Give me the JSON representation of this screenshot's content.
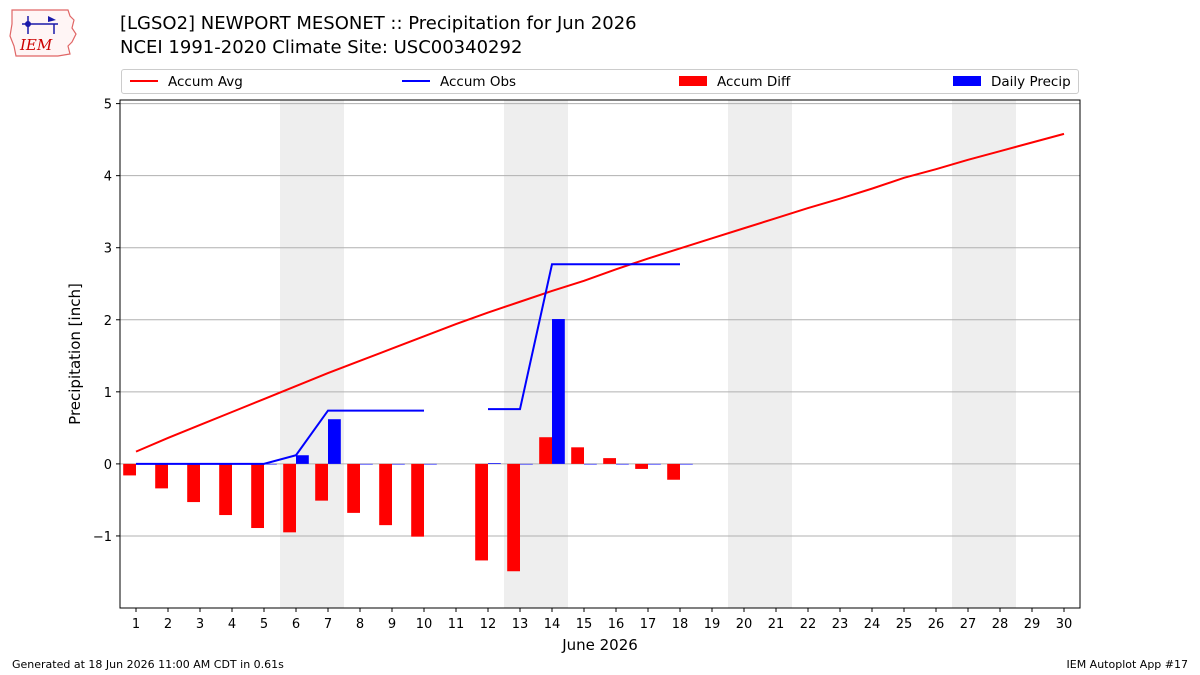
{
  "header": {
    "title_line1": "[LGSO2] NEWPORT MESONET :: Precipitation for Jun 2026",
    "title_line2": "NCEI 1991-2020 Climate Site: USC00340292",
    "logo_text": "IEM"
  },
  "footer": {
    "left": "Generated at 18 Jun 2026 11:00 AM CDT in 0.61s",
    "right": "IEM Autoplot App #17"
  },
  "colors": {
    "avg": "#ff0000",
    "obs": "#0000ff",
    "diff": "#ff0000",
    "daily": "#0000ff",
    "weekend": "#eeeeee",
    "grid": "#b0b0b0"
  },
  "chart_data": {
    "type": "bar",
    "xlabel": "June 2026",
    "ylabel": "Precipitation [inch]",
    "xlim": [
      0.5,
      30.5
    ],
    "ylim": [
      -2.0,
      5.05
    ],
    "yticks": [
      -1,
      0,
      1,
      2,
      3,
      4,
      5
    ],
    "ytick_labels": [
      "−1",
      "0",
      "1",
      "2",
      "3",
      "4",
      "5"
    ],
    "x": [
      1,
      2,
      3,
      4,
      5,
      6,
      7,
      8,
      9,
      10,
      11,
      12,
      13,
      14,
      15,
      16,
      17,
      18,
      19,
      20,
      21,
      22,
      23,
      24,
      25,
      26,
      27,
      28,
      29,
      30
    ],
    "weekend_days": [
      6,
      7,
      13,
      14,
      20,
      21,
      27,
      28
    ],
    "grid": "y",
    "legend_position": "top",
    "series": [
      {
        "name": "Accum Avg",
        "kind": "line",
        "values": [
          0.17,
          0.36,
          0.54,
          0.72,
          0.9,
          1.08,
          1.26,
          1.43,
          1.6,
          1.77,
          1.94,
          2.1,
          2.25,
          2.4,
          2.54,
          2.7,
          2.85,
          2.99,
          3.13,
          3.27,
          3.41,
          3.55,
          3.68,
          3.82,
          3.97,
          4.09,
          4.22,
          4.34,
          4.46,
          4.58
        ]
      },
      {
        "name": "Accum Obs",
        "kind": "line",
        "values": [
          0.0,
          0.0,
          0.0,
          0.0,
          0.0,
          0.12,
          0.74,
          0.74,
          0.74,
          0.74,
          null,
          0.76,
          0.76,
          2.77,
          2.77,
          2.77,
          2.77,
          2.77,
          null,
          null,
          null,
          null,
          null,
          null,
          null,
          null,
          null,
          null,
          null,
          null
        ]
      },
      {
        "name": "Accum Diff",
        "kind": "bar",
        "values": [
          -0.16,
          -0.34,
          -0.53,
          -0.71,
          -0.89,
          -0.95,
          -0.51,
          -0.68,
          -0.85,
          -1.01,
          null,
          -1.34,
          -1.49,
          0.37,
          0.23,
          0.08,
          -0.07,
          -0.22,
          null,
          null,
          null,
          null,
          null,
          null,
          null,
          null,
          null,
          null,
          null,
          null
        ]
      },
      {
        "name": "Daily Precip",
        "kind": "bar",
        "values": [
          0.0,
          0.0,
          0.0,
          0.0,
          0.0,
          0.12,
          0.62,
          0.0,
          0.0,
          0.0,
          null,
          0.01,
          0.0,
          2.01,
          0.0,
          0.0,
          0.0,
          0.0,
          null,
          null,
          null,
          null,
          null,
          null,
          null,
          null,
          null,
          null,
          null,
          null
        ]
      }
    ]
  }
}
